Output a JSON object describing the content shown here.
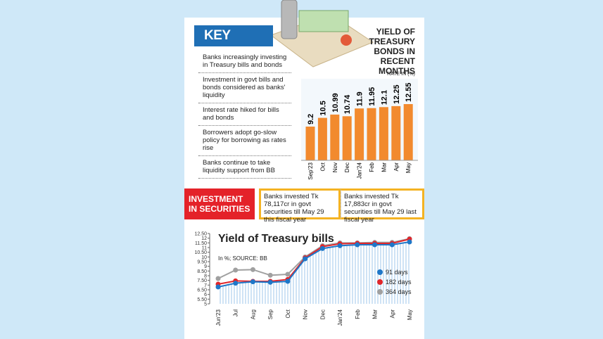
{
  "key_points": {
    "title": "KEY POINTS",
    "items": [
      "Banks increasingly investing in Treasury bills and bonds",
      "Investment in govt bills and bonds considered as banks' liquidity",
      "Interest rate hiked for bills and bonds",
      "Borrowers adopt go-slow policy for borrowing as rates rise",
      "Banks continue to take liquidity support from BB"
    ]
  },
  "investment": {
    "title": "INVESTMENT IN SECURITIES",
    "notes": [
      "Banks invested Tk 78,117cr in govt securities till May 29 this fiscal year",
      "Banks invested Tk 17,883cr in govt securities till May 29 last fiscal year"
    ]
  },
  "chart_data": [
    {
      "type": "bar",
      "title": "YIELD OF TREASURY BONDS IN RECENT MONTHS",
      "subtitle": "RATE IN (%)",
      "categories": [
        "Sep'23",
        "Oct",
        "Nov",
        "Dec",
        "Jan'24",
        "Feb",
        "Mar",
        "Apr",
        "May"
      ],
      "values": [
        9.2,
        10.5,
        10.99,
        10.74,
        11.9,
        11.95,
        12.1,
        12.25,
        12.55
      ],
      "color": "#f28a2e"
    },
    {
      "type": "line",
      "title": "Yield of Treasury bills",
      "subtitle": "In %; SOURCE: BB",
      "categories": [
        "Jun'23",
        "Jul",
        "Aug",
        "Sep",
        "Oct",
        "Nov",
        "Dec",
        "Jan'24",
        "Feb",
        "Mar",
        "Apr",
        "May"
      ],
      "ylim": [
        5,
        12.5
      ],
      "yticks": [
        5,
        {
          "value": 5.5,
          "label": "5.50"
        },
        6,
        {
          "value": 6.5,
          "label": "6.50"
        },
        7,
        {
          "value": 7.5,
          "label": "7.50"
        },
        8,
        {
          "value": 8.5,
          "label": "8.50"
        },
        9,
        {
          "value": 9.5,
          "label": "9.50"
        },
        10,
        {
          "value": 10.5,
          "label": "10.50"
        },
        11,
        {
          "value": 11.5,
          "label": "11.50"
        },
        12,
        {
          "value": 12.5,
          "label": "12.50"
        }
      ],
      "series": [
        {
          "name": "91 days",
          "color": "#1f77c8",
          "values": [
            6.8,
            7.2,
            7.35,
            7.3,
            7.4,
            9.8,
            10.9,
            11.2,
            11.3,
            11.3,
            11.3,
            11.6
          ]
        },
        {
          "name": "182 days",
          "color": "#e0262b",
          "values": [
            7.1,
            7.45,
            7.4,
            7.4,
            7.6,
            9.9,
            11.1,
            11.4,
            11.45,
            11.45,
            11.45,
            11.9
          ]
        },
        {
          "name": "364 days",
          "color": "#a0a0a0",
          "values": [
            7.7,
            8.6,
            8.65,
            8.05,
            8.15,
            10.0,
            11.2,
            11.5,
            11.5,
            11.55,
            11.55,
            11.95
          ]
        }
      ]
    }
  ]
}
